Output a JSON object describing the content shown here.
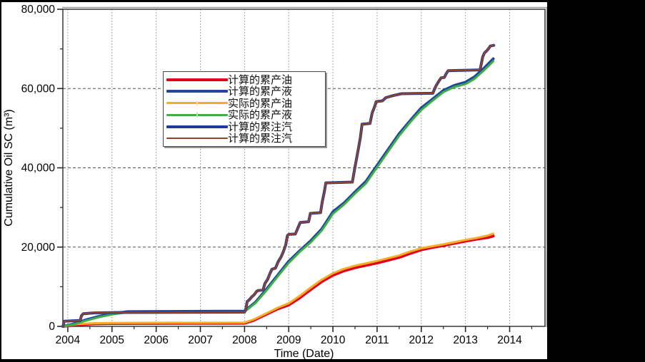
{
  "chart_data": {
    "type": "line",
    "title": "",
    "xlabel": "Time (Date)",
    "ylabel": "Cumulative Oil SC (m³)",
    "xlim": [
      2003.888,
      2014.8
    ],
    "ylim": [
      0,
      80000
    ],
    "x_ticks": [
      2004,
      2005,
      2006,
      2007,
      2008,
      2009,
      2010,
      2011,
      2012,
      2013,
      2014
    ],
    "x_minor_ticks": [
      2004.5,
      2005.5,
      2006.5,
      2007.5,
      2008.5,
      2009.5,
      2010.5,
      2011.5,
      2012.5,
      2013.5,
      2014.5
    ],
    "y_ticks": [
      0,
      20000,
      40000,
      60000,
      80000
    ],
    "y_tick_labels": [
      "0",
      "20,000",
      "40,000",
      "60,000",
      "80,000"
    ],
    "y_minor_ticks": [
      10000,
      30000,
      50000,
      70000
    ],
    "grid": "both",
    "gridline_y_values": [
      20000,
      40000,
      60000
    ],
    "legend_position": "upper-left-inside",
    "series": [
      {
        "key": "calc-oil",
        "name": "计算的累产油",
        "color": "#e4001b",
        "width": 4,
        "marker": false,
        "points": [
          [
            2003.89,
            0
          ],
          [
            2004.2,
            400
          ],
          [
            2004.6,
            650
          ],
          [
            2005.0,
            720
          ],
          [
            2008.0,
            800
          ],
          [
            2008.2,
            1500
          ],
          [
            2008.5,
            3100
          ],
          [
            2008.75,
            4400
          ],
          [
            2009.0,
            5400
          ],
          [
            2009.25,
            7200
          ],
          [
            2009.5,
            9300
          ],
          [
            2009.75,
            11300
          ],
          [
            2010.0,
            12900
          ],
          [
            2010.25,
            14000
          ],
          [
            2010.5,
            14800
          ],
          [
            2010.75,
            15400
          ],
          [
            2011.0,
            16000
          ],
          [
            2011.5,
            17400
          ],
          [
            2011.75,
            18400
          ],
          [
            2012.0,
            19300
          ],
          [
            2012.25,
            19900
          ],
          [
            2012.5,
            20400
          ],
          [
            2013.0,
            21500
          ],
          [
            2013.25,
            22000
          ],
          [
            2013.5,
            22400
          ],
          [
            2013.63,
            22800
          ]
        ]
      },
      {
        "key": "calc-liquid",
        "name": "计算的累产液",
        "color": "#2444a4",
        "width": 4,
        "marker": false,
        "points": [
          [
            2003.89,
            0
          ],
          [
            2004.1,
            500
          ],
          [
            2004.4,
            1600
          ],
          [
            2004.7,
            2500
          ],
          [
            2005.0,
            3200
          ],
          [
            2005.35,
            3700
          ],
          [
            2008.0,
            3850
          ],
          [
            2008.25,
            6100
          ],
          [
            2008.5,
            9400
          ],
          [
            2008.75,
            12900
          ],
          [
            2009.0,
            16400
          ],
          [
            2009.25,
            19100
          ],
          [
            2009.5,
            21600
          ],
          [
            2009.75,
            24600
          ],
          [
            2010.0,
            28900
          ],
          [
            2010.25,
            31100
          ],
          [
            2010.5,
            33900
          ],
          [
            2010.75,
            36600
          ],
          [
            2011.0,
            40600
          ],
          [
            2011.25,
            44600
          ],
          [
            2011.5,
            48600
          ],
          [
            2011.75,
            51900
          ],
          [
            2012.0,
            55100
          ],
          [
            2012.25,
            57300
          ],
          [
            2012.5,
            59500
          ],
          [
            2012.75,
            60800
          ],
          [
            2013.0,
            61600
          ],
          [
            2013.2,
            62900
          ],
          [
            2013.4,
            64900
          ],
          [
            2013.63,
            67500
          ]
        ]
      },
      {
        "key": "actual-oil",
        "name": "实际的累产油",
        "color": "#f6ad25",
        "width": 3,
        "marker": true,
        "marker_color": "#fde39a",
        "points": [
          [
            2003.89,
            0
          ],
          [
            2004.2,
            550
          ],
          [
            2004.6,
            800
          ],
          [
            2005.0,
            870
          ],
          [
            2008.0,
            950
          ],
          [
            2008.2,
            1700
          ],
          [
            2008.5,
            3300
          ],
          [
            2008.75,
            4700
          ],
          [
            2009.0,
            5800
          ],
          [
            2009.25,
            7700
          ],
          [
            2009.5,
            9800
          ],
          [
            2009.75,
            11800
          ],
          [
            2010.0,
            13400
          ],
          [
            2010.25,
            14500
          ],
          [
            2010.5,
            15300
          ],
          [
            2010.75,
            15900
          ],
          [
            2011.0,
            16500
          ],
          [
            2011.5,
            17900
          ],
          [
            2011.75,
            18900
          ],
          [
            2012.0,
            19700
          ],
          [
            2012.25,
            20200
          ],
          [
            2012.5,
            20700
          ],
          [
            2013.0,
            21800
          ],
          [
            2013.25,
            22300
          ],
          [
            2013.5,
            22900
          ],
          [
            2013.63,
            23400
          ]
        ]
      },
      {
        "key": "actual-liquid",
        "name": "实际的累产液",
        "color": "#3cb043",
        "width": 3,
        "marker": true,
        "marker_color": "#b5e6ae",
        "points": [
          [
            2003.89,
            0
          ],
          [
            2004.1,
            400
          ],
          [
            2004.4,
            1400
          ],
          [
            2004.7,
            2300
          ],
          [
            2005.0,
            3000
          ],
          [
            2005.35,
            3550
          ],
          [
            2008.0,
            3700
          ],
          [
            2008.25,
            5900
          ],
          [
            2008.5,
            9100
          ],
          [
            2008.75,
            12600
          ],
          [
            2009.0,
            16000
          ],
          [
            2009.25,
            18800
          ],
          [
            2009.5,
            21200
          ],
          [
            2009.75,
            24200
          ],
          [
            2010.0,
            28400
          ],
          [
            2010.25,
            30700
          ],
          [
            2010.5,
            33500
          ],
          [
            2010.75,
            36100
          ],
          [
            2011.0,
            40100
          ],
          [
            2011.25,
            44100
          ],
          [
            2011.5,
            48100
          ],
          [
            2011.75,
            51500
          ],
          [
            2012.0,
            54600
          ],
          [
            2012.25,
            56900
          ],
          [
            2012.5,
            59100
          ],
          [
            2012.75,
            60400
          ],
          [
            2013.0,
            61100
          ],
          [
            2013.2,
            62400
          ],
          [
            2013.4,
            64400
          ],
          [
            2013.63,
            66900
          ]
        ]
      },
      {
        "key": "calc-steam-base",
        "name": "计算的累注汽",
        "color": "#1f3b98",
        "width": 4,
        "marker": false,
        "points": [
          [
            2003.89,
            0
          ],
          [
            2003.92,
            1300
          ],
          [
            2004.28,
            1500
          ],
          [
            2004.31,
            2700
          ],
          [
            2004.35,
            3200
          ],
          [
            2004.6,
            3400
          ],
          [
            2005.2,
            3500
          ],
          [
            2008.0,
            3600
          ],
          [
            2008.03,
            4400
          ],
          [
            2008.06,
            6300
          ],
          [
            2008.1,
            6600
          ],
          [
            2008.16,
            7400
          ],
          [
            2008.22,
            8000
          ],
          [
            2008.27,
            8800
          ],
          [
            2008.3,
            9000
          ],
          [
            2008.42,
            9200
          ],
          [
            2008.46,
            10800
          ],
          [
            2008.52,
            11800
          ],
          [
            2008.57,
            13200
          ],
          [
            2008.62,
            14400
          ],
          [
            2008.7,
            14700
          ],
          [
            2008.76,
            16300
          ],
          [
            2008.83,
            17600
          ],
          [
            2008.88,
            18900
          ],
          [
            2008.93,
            20500
          ],
          [
            2008.97,
            22900
          ],
          [
            2009.0,
            23200
          ],
          [
            2009.15,
            23300
          ],
          [
            2009.21,
            24900
          ],
          [
            2009.26,
            26200
          ],
          [
            2009.45,
            26400
          ],
          [
            2009.49,
            28500
          ],
          [
            2009.72,
            28700
          ],
          [
            2009.76,
            31500
          ],
          [
            2009.8,
            33600
          ],
          [
            2009.84,
            36200
          ],
          [
            2010.44,
            36400
          ],
          [
            2010.5,
            40200
          ],
          [
            2010.56,
            43800
          ],
          [
            2010.62,
            47500
          ],
          [
            2010.66,
            51000
          ],
          [
            2010.84,
            51200
          ],
          [
            2010.89,
            53900
          ],
          [
            2010.94,
            55300
          ],
          [
            2010.98,
            56700
          ],
          [
            2011.12,
            56900
          ],
          [
            2011.2,
            57700
          ],
          [
            2011.35,
            58200
          ],
          [
            2011.55,
            58700
          ],
          [
            2012.26,
            58800
          ],
          [
            2012.33,
            60600
          ],
          [
            2012.4,
            61900
          ],
          [
            2012.45,
            62700
          ],
          [
            2012.52,
            62800
          ],
          [
            2012.57,
            63900
          ],
          [
            2012.61,
            64500
          ],
          [
            2013.33,
            64700
          ],
          [
            2013.39,
            68000
          ],
          [
            2013.43,
            69000
          ],
          [
            2013.47,
            69400
          ],
          [
            2013.52,
            70000
          ],
          [
            2013.56,
            70700
          ],
          [
            2013.64,
            70900
          ]
        ]
      },
      {
        "key": "calc-steam-top",
        "name": "计算的累注汽",
        "color": "#944227",
        "width": 2.2,
        "marker": false,
        "same_points_as": "calc-steam-base"
      }
    ]
  },
  "legend": {
    "items": [
      {
        "key": "calc-oil",
        "label": "计算的累产油",
        "color": "#e4001b",
        "thickness": 4,
        "marker": false
      },
      {
        "key": "calc-liquid",
        "label": "计算的累产液",
        "color": "#2444a4",
        "thickness": 4,
        "marker": false
      },
      {
        "key": "actual-oil",
        "label": "实际的累产油",
        "color": "#f6ad25",
        "thickness": 3,
        "marker": true,
        "marker_color": "#fde39a"
      },
      {
        "key": "actual-liquid",
        "label": "实际的累产液",
        "color": "#3cb043",
        "thickness": 3,
        "marker": true,
        "marker_color": "#b5e6ae"
      },
      {
        "key": "calc-steam-1",
        "label": "计算的累注汽",
        "color": "#1f3b98",
        "thickness": 4,
        "marker": false
      },
      {
        "key": "calc-steam-2",
        "label": "计算的累注汽",
        "color": "#944227",
        "thickness": 2.2,
        "marker": false
      }
    ]
  },
  "axes": {
    "x_label": "Time (Date)",
    "y_label": "Cumulative Oil SC (m³)"
  },
  "colors": {
    "background": "#000000",
    "plot_background": "#ffffff",
    "grid_vertical": "#8a8a8a",
    "grid_horizontal": "#555555",
    "spine": "#2a2a2a",
    "spine_shadow": "#9a9a9a"
  }
}
